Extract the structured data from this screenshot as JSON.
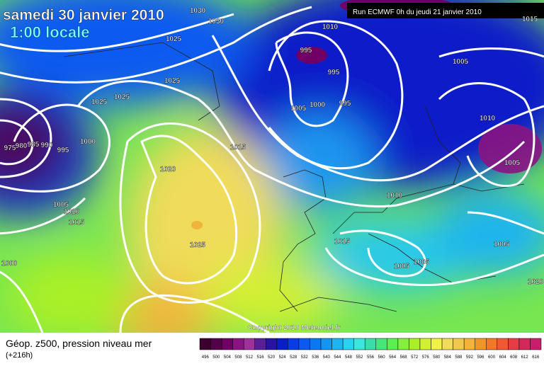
{
  "header": {
    "title": "samedi 30 janvier 2010",
    "subtitle": "1:00 locale"
  },
  "run_info": "Run ECMWF 0h du jeudi 21 janvier 2010",
  "copyright": "Copyright 2010 Meteociel.fr",
  "legend": {
    "title": "Géop. z500, pression niveau mer",
    "subtitle": "(+216h)",
    "scale": [
      496,
      500,
      504,
      508,
      512,
      516,
      520,
      524,
      528,
      532,
      536,
      540,
      544,
      548,
      552,
      556,
      560,
      564,
      568,
      572,
      576,
      580,
      584,
      588,
      592,
      596,
      600,
      604,
      608,
      612,
      616
    ],
    "colors": [
      "#3c0030",
      "#55004a",
      "#700066",
      "#8a1482",
      "#a0309a",
      "#5a1e96",
      "#2814a0",
      "#0a1ec8",
      "#0a3ce6",
      "#0a5af0",
      "#0a78f0",
      "#1496f0",
      "#1eb4f0",
      "#28d2f0",
      "#3ce6dc",
      "#3cdcaa",
      "#46e678",
      "#5af050",
      "#82f03c",
      "#aaf028",
      "#d2f032",
      "#f0f046",
      "#f0dc5a",
      "#f0c850",
      "#f0b43c",
      "#f09628",
      "#f07828",
      "#f05a32",
      "#e63c46",
      "#d2285a",
      "#c81e6e"
    ]
  },
  "isobar_labels": [
    1030,
    1030,
    1010,
    1015,
    995,
    995,
    995,
    1000,
    1005,
    1005,
    1010,
    1005,
    1025,
    1025,
    1025,
    1025,
    1000,
    995,
    990,
    985,
    980,
    975,
    1015,
    1020,
    1010,
    1005,
    1010,
    1015,
    1025,
    1015,
    1005,
    1005,
    1005,
    1000,
    1020
  ]
}
